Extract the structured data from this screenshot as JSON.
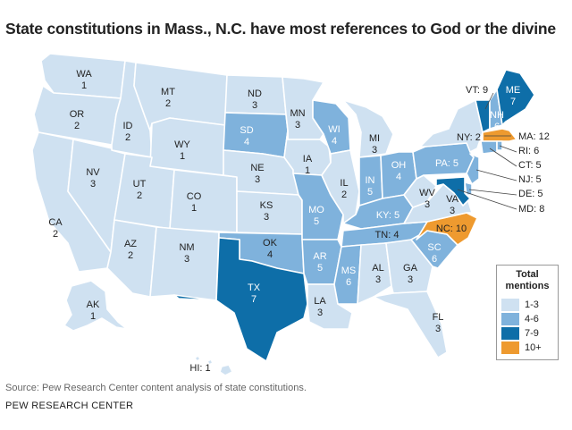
{
  "title": "State constitutions in Mass., N.C. have most references to God or the divine",
  "source": "Source: Pew Research Center content analysis of state constitutions.",
  "credit": "PEW RESEARCH CENTER",
  "colors": {
    "c1": "#cfe1f1",
    "c2": "#7fb2dc",
    "c3": "#0e6ea8",
    "c4": "#ee9a2f"
  },
  "legend": {
    "title_line1": "Total",
    "title_line2": "mentions",
    "items": [
      {
        "label": "1-3",
        "color": "#cfe1f1"
      },
      {
        "label": "4-6",
        "color": "#7fb2dc"
      },
      {
        "label": "7-9",
        "color": "#0e6ea8"
      },
      {
        "label": "10+",
        "color": "#ee9a2f"
      }
    ]
  },
  "states": {
    "WA": {
      "abbr": "WA",
      "count": "1"
    },
    "OR": {
      "abbr": "OR",
      "count": "2"
    },
    "CA": {
      "abbr": "CA",
      "count": "2"
    },
    "ID": {
      "abbr": "ID",
      "count": "2"
    },
    "NV": {
      "abbr": "NV",
      "count": "3"
    },
    "MT": {
      "abbr": "MT",
      "count": "2"
    },
    "WY": {
      "abbr": "WY",
      "count": "1"
    },
    "UT": {
      "abbr": "UT",
      "count": "2"
    },
    "AZ": {
      "abbr": "AZ",
      "count": "2"
    },
    "CO": {
      "abbr": "CO",
      "count": "1"
    },
    "NM": {
      "abbr": "NM",
      "count": "3"
    },
    "ND": {
      "abbr": "ND",
      "count": "3"
    },
    "SD": {
      "abbr": "SD",
      "count": "4"
    },
    "NE": {
      "abbr": "NE",
      "count": "3"
    },
    "KS": {
      "abbr": "KS",
      "count": "3"
    },
    "OK": {
      "abbr": "OK",
      "count": "4"
    },
    "TX": {
      "abbr": "TX",
      "count": "7"
    },
    "MN": {
      "abbr": "MN",
      "count": "3"
    },
    "IA": {
      "abbr": "IA",
      "count": "1"
    },
    "MO": {
      "abbr": "MO",
      "count": "5"
    },
    "AR": {
      "abbr": "AR",
      "count": "5"
    },
    "LA": {
      "abbr": "LA",
      "count": "3"
    },
    "WI": {
      "abbr": "WI",
      "count": "4"
    },
    "IL": {
      "abbr": "IL",
      "count": "2"
    },
    "MI": {
      "abbr": "MI",
      "count": "3"
    },
    "IN": {
      "abbr": "IN",
      "count": "5"
    },
    "OH": {
      "abbr": "OH",
      "count": "4"
    },
    "KY": {
      "abbr": "KY",
      "count": "5"
    },
    "TN": {
      "abbr": "TN",
      "count": "4"
    },
    "MS": {
      "abbr": "MS",
      "count": "6"
    },
    "AL": {
      "abbr": "AL",
      "count": "3"
    },
    "GA": {
      "abbr": "GA",
      "count": "3"
    },
    "FL": {
      "abbr": "FL",
      "count": "3"
    },
    "SC": {
      "abbr": "SC",
      "count": "6"
    },
    "NC": {
      "abbr": "NC",
      "count": "10"
    },
    "VA": {
      "abbr": "VA",
      "count": "3"
    },
    "WV": {
      "abbr": "WV",
      "count": "3"
    },
    "PA": {
      "abbr": "PA",
      "count": "5"
    },
    "NY": {
      "abbr": "NY",
      "count": "2"
    },
    "VT": {
      "abbr": "VT",
      "count": "9"
    },
    "NH": {
      "abbr": "NH",
      "count": "6"
    },
    "ME": {
      "abbr": "ME",
      "count": "7"
    },
    "MA": {
      "abbr": "MA",
      "count": "12"
    },
    "RI": {
      "abbr": "RI",
      "count": "6"
    },
    "CT": {
      "abbr": "CT",
      "count": "5"
    },
    "NJ": {
      "abbr": "NJ",
      "count": "5"
    },
    "DE": {
      "abbr": "DE",
      "count": "5"
    },
    "MD": {
      "abbr": "MD",
      "count": "8"
    },
    "AK": {
      "abbr": "AK",
      "count": "1"
    },
    "HI": {
      "abbr": "HI",
      "count": "1"
    }
  },
  "callouts": {
    "VT": "VT: 9",
    "NY": "NY: 2",
    "MA": "MA: 12",
    "RI": "RI: 6",
    "CT": "CT: 5",
    "NJ": "NJ: 5",
    "DE": "DE: 5",
    "MD": "MD: 8",
    "PA": "PA: 5",
    "KY": "KY: 5",
    "TN": "TN: 4",
    "NC": "NC: 10",
    "HI": "HI: 1"
  }
}
